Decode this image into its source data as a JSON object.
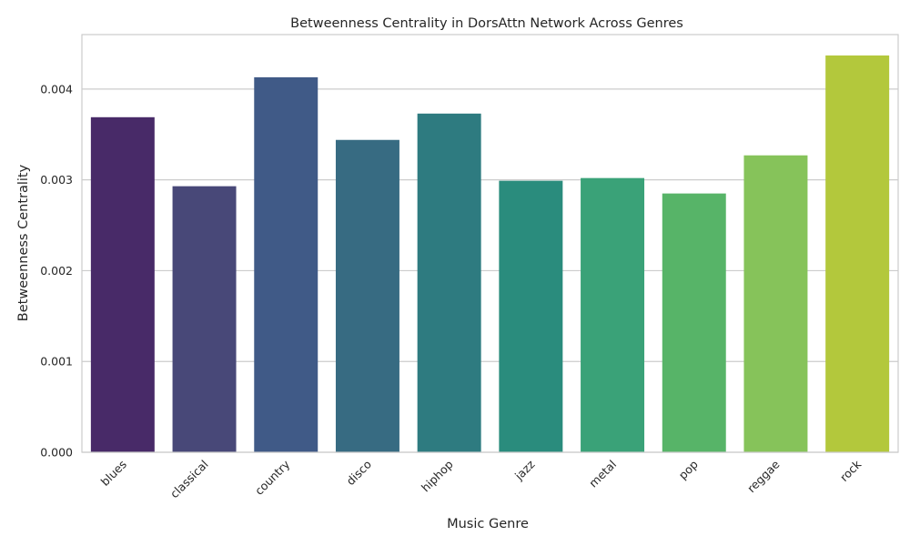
{
  "chart_data": {
    "type": "bar",
    "title": "Betweenness Centrality in DorsAttn Network Across Genres",
    "xlabel": "Music Genre",
    "ylabel": "Betweenness Centrality",
    "categories": [
      "blues",
      "classical",
      "country",
      "disco",
      "hiphop",
      "jazz",
      "metal",
      "pop",
      "reggae",
      "rock"
    ],
    "values": [
      0.00369,
      0.00293,
      0.00413,
      0.00344,
      0.00373,
      0.00299,
      0.00302,
      0.00285,
      0.00327,
      0.00437
    ],
    "ylim": [
      0,
      0.0046
    ],
    "yticks": [
      0.0,
      0.001,
      0.002,
      0.003,
      0.004
    ],
    "ytick_labels": [
      "0.000",
      "0.001",
      "0.002",
      "0.003",
      "0.004"
    ],
    "colors": [
      "#482a68",
      "#484878",
      "#405a87",
      "#376b82",
      "#2e7b80",
      "#2a8c7d",
      "#3aa278",
      "#57b468",
      "#86c35a",
      "#b3c83c"
    ],
    "grid": true,
    "legend": "none"
  }
}
